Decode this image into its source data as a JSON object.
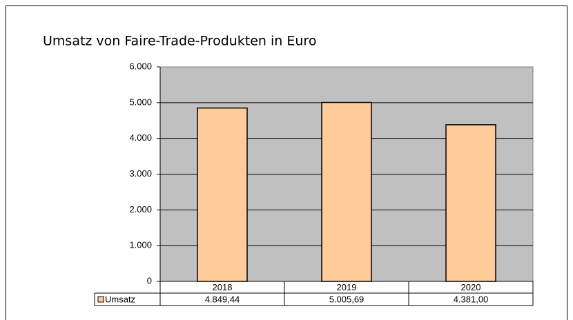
{
  "chart_data": {
    "type": "bar",
    "title": "Umsatz von Faire-Trade-Produkten in Euro",
    "categories": [
      "2018",
      "2019",
      "2020"
    ],
    "series": [
      {
        "name": "Umsatz",
        "color": "#ffcc99",
        "values": [
          4849.44,
          5005.69,
          4381.0
        ],
        "value_labels": [
          "4.849,44",
          "5.005,69",
          "4.381,00"
        ]
      }
    ],
    "ylim": [
      0,
      6000
    ],
    "yticks": [
      0,
      {
        "value": 1000,
        "label": "1.000"
      },
      {
        "value": 2000,
        "label": "2.000"
      },
      {
        "value": 3000,
        "label": "3.000"
      },
      {
        "value": 4000,
        "label": "4.000"
      },
      {
        "value": 5000,
        "label": "5.000"
      },
      {
        "value": 6000,
        "label": "6.000"
      }
    ],
    "grid": true,
    "plot_background": "#c0c0c0"
  }
}
